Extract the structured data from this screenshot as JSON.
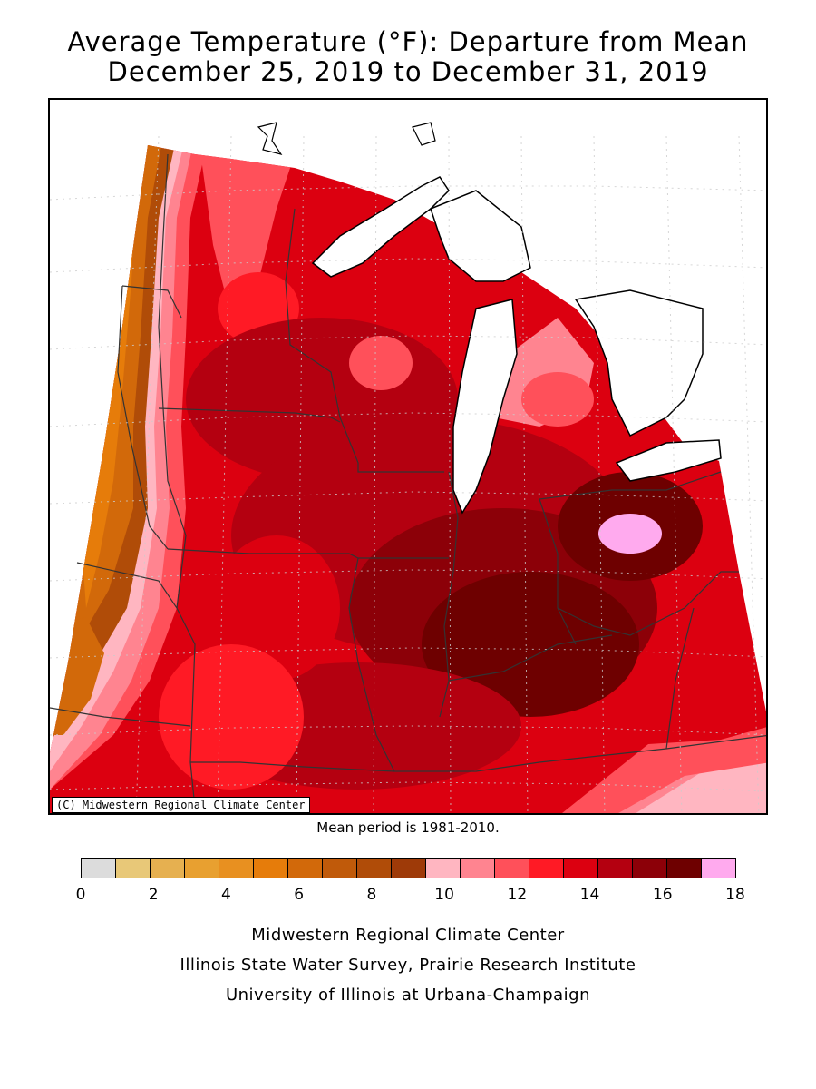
{
  "header": {
    "title_line1": "Average Temperature (°F): Departure from Mean",
    "title_line2": "December 25, 2019 to December 31, 2019"
  },
  "map": {
    "copyright": "(C) Midwestern Regional Climate Center",
    "mean_period": "Mean period is 1981-2010."
  },
  "legend": {
    "colors": [
      "#dcdcdc",
      "#e8c878",
      "#e6b050",
      "#e8a030",
      "#e89020",
      "#e67c0a",
      "#d2690a",
      "#c05a0a",
      "#b04c08",
      "#9e3a08",
      "#ffb6c1",
      "#ff8490",
      "#ff505a",
      "#ff1a25",
      "#dc0010",
      "#b40010",
      "#8c0008",
      "#6e0000",
      "#ffaaee"
    ],
    "tick_labels": [
      "0",
      "2",
      "4",
      "6",
      "8",
      "10",
      "12",
      "14",
      "16",
      "18"
    ]
  },
  "footer": {
    "line1": "Midwestern Regional Climate Center",
    "line2": "Illinois State Water Survey, Prairie Research Institute",
    "line3": "University of Illinois at Urbana-Champaign"
  }
}
